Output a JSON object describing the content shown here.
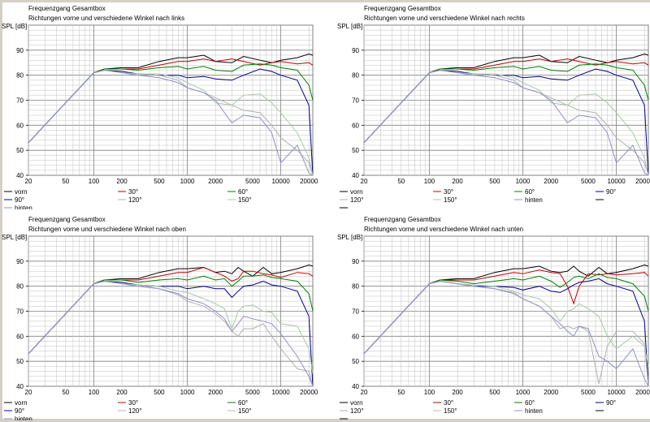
{
  "colors": {
    "vorn": "#000000",
    "30": "#c00000",
    "60": "#008000",
    "90": "#000090",
    "120": "#b0b0b0",
    "150": "#a8c8a8",
    "hinten": "#9090c8",
    "grid": "#c0c0c0",
    "grid_major": "#808080"
  },
  "chart_data": [
    {
      "type": "line",
      "title": "Frequenzgang Gesamtbox",
      "subtitle": "Richtungen vorne und verschiedene Winkel nach links",
      "ylabel": "SPL [dB]",
      "xlabel": "",
      "xscale": "log",
      "xlim": [
        20,
        22000
      ],
      "ylim": [
        40,
        100
      ],
      "x_ticks": [
        "20",
        "50",
        "100",
        "200",
        "500",
        "1000",
        "2000",
        "5000",
        "10000",
        "20000"
      ],
      "y_ticks": [
        "40",
        "50",
        "60",
        "70",
        "80",
        "90"
      ],
      "grid": true,
      "legend_position": "bottom",
      "legend": [
        "vorn",
        "30°",
        "60°",
        "90°",
        "120°",
        "150°",
        "hinten"
      ],
      "x": [
        20,
        50,
        100,
        130,
        200,
        300,
        500,
        800,
        1000,
        1500,
        2000,
        3000,
        4000,
        6000,
        8000,
        10000,
        15000,
        20000,
        22000
      ],
      "series": [
        {
          "name": "vorn",
          "key": "vorn",
          "values": [
            53,
            69,
            81,
            82.5,
            83,
            83,
            85.5,
            87,
            87,
            88,
            85.5,
            85,
            87.5,
            86,
            85,
            86,
            87,
            88.5,
            88
          ]
        },
        {
          "name": "30°",
          "key": "30",
          "values": [
            53,
            69,
            81,
            82.5,
            82.5,
            82.5,
            84,
            85.5,
            85.5,
            86.5,
            85.5,
            86.5,
            85.5,
            84,
            85,
            85.5,
            84.5,
            85,
            84
          ]
        },
        {
          "name": "60°",
          "key": "60",
          "values": [
            53,
            69,
            81,
            82.5,
            82.5,
            82,
            83,
            83.5,
            82.5,
            83.5,
            82,
            81.5,
            84,
            84.5,
            84,
            83,
            82,
            76,
            70
          ]
        },
        {
          "name": "90°",
          "key": "90",
          "values": [
            53,
            69,
            81,
            82,
            81.5,
            80.5,
            80,
            80,
            79,
            79.5,
            78.5,
            78,
            80,
            82.5,
            81.5,
            80,
            78,
            68,
            40
          ]
        },
        {
          "name": "120°",
          "key": "120",
          "values": [
            53,
            69,
            81,
            82,
            81,
            80.5,
            80,
            78,
            75,
            73,
            71,
            68,
            66,
            65,
            60,
            55,
            50,
            45,
            40
          ]
        },
        {
          "name": "150°",
          "key": "150",
          "values": [
            53,
            69,
            81,
            82,
            81,
            80.5,
            80.5,
            79,
            77,
            74,
            69,
            68,
            72,
            72.5,
            69,
            65,
            57,
            47,
            40
          ]
        },
        {
          "name": "hinten",
          "key": "hinten",
          "values": [
            53,
            69,
            81,
            82,
            81,
            80,
            79,
            77,
            75,
            73,
            70,
            61,
            64,
            63,
            57,
            45,
            52,
            41,
            40
          ]
        }
      ]
    },
    {
      "type": "line",
      "title": "Frequenzgang Gesamtbox",
      "subtitle": "Richtungen vorne und verschiedene Winkel nach rechts",
      "ylabel": "SPL [dB]",
      "xlabel": "",
      "xscale": "log",
      "xlim": [
        20,
        22000
      ],
      "ylim": [
        40,
        100
      ],
      "x_ticks": [
        "20",
        "50",
        "100",
        "200",
        "500",
        "1000",
        "2000",
        "5000",
        "10000",
        "20000"
      ],
      "y_ticks": [
        "40",
        "50",
        "60",
        "70",
        "80",
        "90"
      ],
      "grid": true,
      "legend_position": "bottom",
      "legend": [
        "vorn",
        "30°",
        "60°",
        "90°",
        "120°",
        "150°",
        "hinten",
        "",
        ""
      ],
      "x": [
        20,
        50,
        100,
        130,
        200,
        300,
        500,
        800,
        1000,
        1500,
        2000,
        3000,
        4000,
        6000,
        8000,
        10000,
        15000,
        20000,
        22000
      ],
      "series": [
        {
          "name": "vorn",
          "key": "vorn",
          "values": [
            53,
            69,
            81,
            82.5,
            83,
            83,
            85.5,
            87,
            87,
            88,
            85.5,
            85,
            87.5,
            86,
            85,
            86,
            87,
            88.5,
            88
          ]
        },
        {
          "name": "30°",
          "key": "30",
          "values": [
            53,
            69,
            81,
            82.5,
            82.5,
            82.5,
            84,
            85.5,
            85.5,
            86.5,
            85.5,
            86.5,
            85.5,
            84,
            85,
            85.5,
            84.5,
            85,
            84
          ]
        },
        {
          "name": "60°",
          "key": "60",
          "values": [
            53,
            69,
            81,
            82.5,
            82.5,
            82,
            83,
            83.5,
            82.5,
            83.5,
            82,
            81.5,
            84,
            84.5,
            84,
            83,
            82,
            76,
            70
          ]
        },
        {
          "name": "90°",
          "key": "90",
          "values": [
            53,
            69,
            81,
            82,
            81.5,
            80.5,
            80,
            80,
            79,
            79.5,
            78.5,
            78,
            80,
            82.5,
            81.5,
            80,
            78,
            68,
            40
          ]
        },
        {
          "name": "120°",
          "key": "120",
          "values": [
            53,
            69,
            81,
            82,
            81,
            80.5,
            80,
            78,
            75,
            73,
            71,
            68,
            66,
            65,
            60,
            55,
            50,
            45,
            40
          ]
        },
        {
          "name": "150°",
          "key": "150",
          "values": [
            53,
            69,
            81,
            82,
            81,
            80.5,
            80.5,
            79,
            77,
            74,
            69,
            68,
            72,
            72.5,
            69,
            65,
            57,
            47,
            40
          ]
        },
        {
          "name": "hinten",
          "key": "hinten",
          "values": [
            53,
            69,
            81,
            82,
            81,
            80,
            79,
            77,
            75,
            73,
            70,
            61,
            64,
            63,
            57,
            45,
            52,
            41,
            40
          ]
        }
      ]
    },
    {
      "type": "line",
      "title": "Frequenzgang Gesamtbox",
      "subtitle": "Richtungen vorne und verschiedene Winkel nach oben",
      "ylabel": "SPL [dB]",
      "xlabel": "",
      "xscale": "log",
      "xlim": [
        20,
        22000
      ],
      "ylim": [
        40,
        100
      ],
      "x_ticks": [
        "20",
        "50",
        "100",
        "200",
        "500",
        "1000",
        "2000",
        "5000",
        "10000",
        "20000"
      ],
      "y_ticks": [
        "40",
        "50",
        "60",
        "70",
        "80",
        "90"
      ],
      "grid": true,
      "legend_position": "bottom",
      "legend": [
        "vorn",
        "30°",
        "60°",
        "90°",
        "120°",
        "150°",
        "hinten"
      ],
      "x": [
        20,
        50,
        100,
        130,
        200,
        300,
        500,
        800,
        1000,
        1500,
        2000,
        2500,
        3000,
        3500,
        4000,
        5000,
        6500,
        8000,
        10000,
        15000,
        20000,
        22000
      ],
      "series": [
        {
          "name": "vorn",
          "key": "vorn",
          "values": [
            53,
            69,
            81,
            82.5,
            83,
            83,
            85.5,
            87,
            87,
            87.5,
            85.5,
            86,
            85,
            87.5,
            86,
            84,
            87.5,
            85,
            85.5,
            87,
            88.5,
            88
          ]
        },
        {
          "name": "30°",
          "key": "30",
          "values": [
            53,
            69,
            81,
            82.5,
            82.5,
            82.5,
            84,
            85.5,
            85.5,
            87.5,
            85.5,
            84,
            82,
            83,
            86,
            86,
            85,
            84.5,
            83.5,
            85.5,
            85,
            84
          ]
        },
        {
          "name": "60°",
          "key": "60",
          "values": [
            53,
            69,
            81,
            82.5,
            82.5,
            81.5,
            82.5,
            83,
            82.5,
            84,
            82.5,
            83,
            80,
            82,
            84,
            84,
            84.5,
            83.5,
            83,
            82,
            77,
            70
          ]
        },
        {
          "name": "90°",
          "key": "90",
          "values": [
            53,
            69,
            81,
            82,
            81.5,
            80.5,
            80,
            80,
            79,
            80,
            79,
            79,
            75.5,
            78,
            80,
            80.5,
            82,
            80.5,
            80,
            78,
            68,
            40
          ]
        },
        {
          "name": "120°",
          "key": "120",
          "values": [
            53,
            69,
            81,
            82,
            81,
            80.5,
            79,
            76.5,
            74,
            72,
            69,
            66,
            62,
            60,
            63,
            63,
            65,
            60,
            55,
            47,
            46,
            40
          ]
        },
        {
          "name": "150°",
          "key": "150",
          "values": [
            53,
            69,
            81,
            82,
            81,
            80.5,
            80,
            78,
            77.5,
            75,
            73,
            71,
            63,
            70,
            72,
            72.5,
            70,
            69.5,
            65,
            64,
            55,
            45
          ]
        },
        {
          "name": "hinten",
          "key": "hinten",
          "values": [
            53,
            69,
            81,
            82,
            81,
            80,
            79,
            77,
            75,
            73,
            70,
            67,
            62,
            65,
            68,
            67,
            66,
            65,
            61,
            52,
            44,
            40
          ]
        }
      ]
    },
    {
      "type": "line",
      "title": "Frequenzgang Gesamtbox",
      "subtitle": "Richtungen vorne und verschiedene Winkel nach unten",
      "ylabel": "SPL [dB]",
      "xlabel": "",
      "xscale": "log",
      "xlim": [
        20,
        22000
      ],
      "ylim": [
        40,
        100
      ],
      "x_ticks": [
        "20",
        "50",
        "100",
        "200",
        "500",
        "1000",
        "2000",
        "5000",
        "10000",
        "20000"
      ],
      "y_ticks": [
        "40",
        "50",
        "60",
        "70",
        "80",
        "90"
      ],
      "grid": true,
      "legend_position": "bottom",
      "legend": [
        "vorn",
        "30°",
        "60°",
        "90°",
        "120°",
        "150°",
        "hinten",
        "",
        ""
      ],
      "x": [
        20,
        50,
        100,
        130,
        200,
        300,
        500,
        800,
        1000,
        1500,
        2000,
        2500,
        3000,
        3500,
        4000,
        5000,
        6500,
        8000,
        10000,
        15000,
        20000,
        22000
      ],
      "series": [
        {
          "name": "vorn",
          "key": "vorn",
          "values": [
            53,
            69,
            81,
            82.5,
            83,
            83,
            85.5,
            87,
            87,
            88,
            86,
            85.5,
            86,
            88,
            86,
            84,
            87.5,
            85,
            85.5,
            87,
            88.5,
            88
          ]
        },
        {
          "name": "30°",
          "key": "30",
          "values": [
            53,
            69,
            81,
            82.5,
            82.5,
            82.5,
            84,
            85.5,
            85,
            86.5,
            85.5,
            85,
            80,
            73,
            80,
            85,
            84.5,
            85,
            84.5,
            85,
            85.5,
            84
          ]
        },
        {
          "name": "60°",
          "key": "60",
          "values": [
            53,
            69,
            81,
            82.5,
            82,
            81,
            82,
            83,
            82.5,
            84,
            82,
            79.5,
            81.5,
            83.5,
            84,
            83,
            85,
            83.5,
            83,
            81,
            76,
            70
          ]
        },
        {
          "name": "90°",
          "key": "90",
          "values": [
            53,
            69,
            81,
            82,
            81,
            80,
            80,
            79.5,
            78.5,
            80,
            78,
            77.5,
            79,
            80.5,
            81.5,
            82,
            83,
            81,
            80,
            78,
            66,
            40
          ]
        },
        {
          "name": "120°",
          "key": "120",
          "values": [
            53,
            69,
            81,
            82,
            81,
            80,
            79,
            77.5,
            75,
            72,
            68,
            63,
            64,
            63,
            64,
            62,
            41,
            56,
            62,
            62,
            57,
            40
          ]
        },
        {
          "name": "150°",
          "key": "150",
          "values": [
            53,
            69,
            81,
            82,
            81,
            80.5,
            80,
            78,
            76.5,
            75,
            71,
            66,
            70,
            71,
            73,
            71,
            68,
            60,
            55,
            60,
            56,
            48
          ]
        },
        {
          "name": "hinten",
          "key": "hinten",
          "values": [
            53,
            69,
            81,
            82,
            81,
            80,
            79,
            77,
            75,
            72,
            68,
            65,
            62,
            60,
            64,
            63,
            52,
            50,
            47,
            55,
            43,
            40
          ]
        }
      ]
    }
  ]
}
